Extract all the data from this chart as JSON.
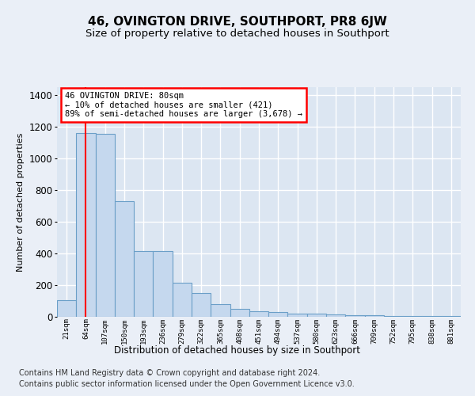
{
  "title": "46, OVINGTON DRIVE, SOUTHPORT, PR8 6JW",
  "subtitle": "Size of property relative to detached houses in Southport",
  "xlabel": "Distribution of detached houses by size in Southport",
  "ylabel": "Number of detached properties",
  "bar_labels": [
    "21sqm",
    "64sqm",
    "107sqm",
    "150sqm",
    "193sqm",
    "236sqm",
    "279sqm",
    "322sqm",
    "365sqm",
    "408sqm",
    "451sqm",
    "494sqm",
    "537sqm",
    "580sqm",
    "623sqm",
    "666sqm",
    "709sqm",
    "752sqm",
    "795sqm",
    "838sqm",
    "881sqm"
  ],
  "bar_values": [
    105,
    1160,
    1155,
    730,
    415,
    415,
    215,
    150,
    80,
    50,
    35,
    30,
    20,
    18,
    15,
    12,
    10,
    5,
    5,
    5,
    3
  ],
  "bar_color": "#c5d8ee",
  "bar_edge_color": "#6b9fc8",
  "red_line_x": 1.5,
  "annotation_text": "46 OVINGTON DRIVE: 80sqm\n← 10% of detached houses are smaller (421)\n89% of semi-detached houses are larger (3,678) →",
  "annotation_box_color": "white",
  "annotation_box_edge": "red",
  "footer": "Contains HM Land Registry data © Crown copyright and database right 2024.\nContains public sector information licensed under the Open Government Licence v3.0.",
  "ylim": [
    0,
    1450
  ],
  "bg_color": "#eaeff7",
  "plot_bg_color": "#dce6f2",
  "grid_color": "#ffffff",
  "title_fontsize": 11,
  "subtitle_fontsize": 9.5,
  "ylabel_fontsize": 8,
  "xlabel_fontsize": 8.5,
  "footer_fontsize": 7
}
